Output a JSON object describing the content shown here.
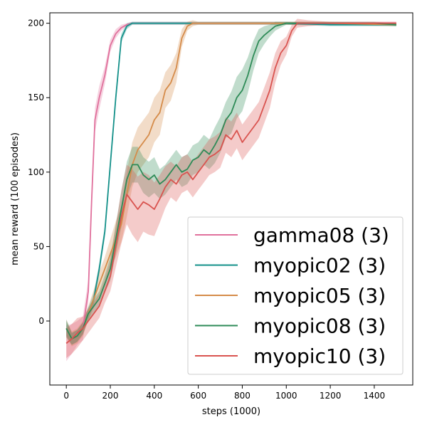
{
  "chart_data": {
    "type": "line",
    "title": "",
    "xlabel": "steps (1000)",
    "ylabel": "mean reward (100 episodes)",
    "xlim": [
      -75,
      1575
    ],
    "ylim": [
      -43,
      207
    ],
    "xticks": [
      0,
      200,
      400,
      600,
      800,
      1000,
      1200,
      1400
    ],
    "yticks": [
      0,
      50,
      100,
      150,
      200
    ],
    "grid": false,
    "legend_position": "lower-right",
    "series": [
      {
        "name": "gamma08 (3)",
        "color": "#e0709c",
        "x": [
          0,
          25,
          50,
          75,
          100,
          115,
          130,
          150,
          175,
          200,
          225,
          250,
          275,
          300,
          400,
          500,
          600,
          800,
          1000,
          1200,
          1500
        ],
        "y": [
          -15,
          -12,
          -8,
          -5,
          20,
          80,
          135,
          150,
          165,
          185,
          193,
          197,
          199,
          200,
          200,
          200,
          200,
          200,
          200,
          200,
          200
        ],
        "band": [
          12,
          10,
          8,
          8,
          8,
          8,
          8,
          8,
          6,
          4,
          3,
          2,
          1,
          1,
          1,
          1,
          1,
          1,
          1,
          1,
          1
        ]
      },
      {
        "name": "myopic02 (3)",
        "color": "#139089",
        "x": [
          0,
          25,
          50,
          75,
          100,
          125,
          150,
          175,
          200,
          225,
          250,
          275,
          300,
          400,
          500,
          600,
          800,
          1000,
          1200,
          1500
        ],
        "y": [
          -5,
          -12,
          -10,
          -5,
          5,
          15,
          35,
          60,
          105,
          150,
          190,
          198,
          200,
          200,
          200,
          200,
          200,
          200,
          199,
          199
        ],
        "band": [
          6,
          4,
          4,
          4,
          4,
          4,
          4,
          4,
          4,
          4,
          3,
          2,
          1,
          1,
          1,
          1,
          1,
          1,
          1,
          1
        ]
      },
      {
        "name": "myopic05 (3)",
        "color": "#d58b49",
        "x": [
          0,
          25,
          50,
          75,
          100,
          125,
          150,
          175,
          200,
          225,
          250,
          275,
          300,
          325,
          350,
          375,
          400,
          425,
          450,
          475,
          500,
          525,
          550,
          575,
          600,
          700,
          800,
          1000,
          1200,
          1500
        ],
        "y": [
          -5,
          -12,
          -10,
          -5,
          5,
          15,
          25,
          35,
          45,
          55,
          65,
          85,
          105,
          115,
          120,
          125,
          135,
          140,
          155,
          160,
          170,
          190,
          198,
          200,
          200,
          200,
          200,
          200,
          200,
          199
        ],
        "band": [
          6,
          5,
          5,
          5,
          5,
          6,
          8,
          8,
          10,
          12,
          12,
          15,
          15,
          15,
          15,
          15,
          15,
          15,
          12,
          12,
          10,
          6,
          3,
          2,
          1,
          1,
          1,
          1,
          1,
          1
        ]
      },
      {
        "name": "myopic08 (3)",
        "color": "#2e8b57",
        "x": [
          0,
          25,
          50,
          75,
          100,
          125,
          150,
          175,
          200,
          225,
          250,
          275,
          300,
          325,
          350,
          375,
          400,
          425,
          450,
          475,
          500,
          525,
          550,
          575,
          600,
          625,
          650,
          675,
          700,
          725,
          750,
          775,
          800,
          825,
          850,
          875,
          900,
          925,
          950,
          975,
          1000,
          1050,
          1100,
          1200,
          1300,
          1400,
          1500
        ],
        "y": [
          -5,
          -12,
          -10,
          -5,
          5,
          10,
          15,
          25,
          35,
          55,
          75,
          95,
          105,
          105,
          98,
          95,
          98,
          92,
          95,
          100,
          105,
          100,
          102,
          108,
          110,
          115,
          112,
          118,
          125,
          135,
          140,
          150,
          155,
          165,
          178,
          188,
          192,
          195,
          198,
          199,
          200,
          200,
          200,
          200,
          200,
          200,
          199
        ],
        "band": [
          5,
          4,
          4,
          4,
          4,
          5,
          5,
          6,
          8,
          10,
          12,
          12,
          12,
          12,
          12,
          12,
          12,
          10,
          10,
          10,
          10,
          10,
          10,
          10,
          10,
          10,
          10,
          12,
          12,
          12,
          14,
          14,
          14,
          12,
          10,
          8,
          6,
          4,
          3,
          2,
          1,
          1,
          1,
          1,
          1,
          1,
          1
        ]
      },
      {
        "name": "myopic10 (3)",
        "color": "#d9534f",
        "x": [
          0,
          25,
          50,
          75,
          100,
          125,
          150,
          175,
          200,
          225,
          250,
          275,
          300,
          325,
          350,
          375,
          400,
          425,
          450,
          475,
          500,
          525,
          550,
          575,
          600,
          625,
          650,
          675,
          700,
          725,
          750,
          775,
          800,
          825,
          850,
          875,
          900,
          925,
          950,
          975,
          1000,
          1025,
          1050,
          1100,
          1200,
          1300,
          1400,
          1500
        ],
        "y": [
          -15,
          -12,
          -8,
          -5,
          0,
          5,
          10,
          20,
          30,
          50,
          70,
          85,
          80,
          75,
          80,
          78,
          75,
          82,
          90,
          95,
          92,
          98,
          100,
          95,
          100,
          105,
          110,
          112,
          115,
          125,
          122,
          128,
          120,
          125,
          130,
          135,
          145,
          155,
          170,
          180,
          185,
          195,
          200,
          200,
          200,
          200,
          200,
          200
        ],
        "band": [
          10,
          10,
          10,
          8,
          8,
          8,
          8,
          8,
          10,
          14,
          18,
          20,
          22,
          22,
          20,
          20,
          18,
          16,
          14,
          12,
          12,
          12,
          12,
          12,
          12,
          12,
          12,
          12,
          12,
          12,
          12,
          12,
          12,
          12,
          12,
          12,
          12,
          12,
          10,
          8,
          6,
          4,
          3,
          2,
          1,
          1,
          1,
          1
        ]
      }
    ]
  }
}
